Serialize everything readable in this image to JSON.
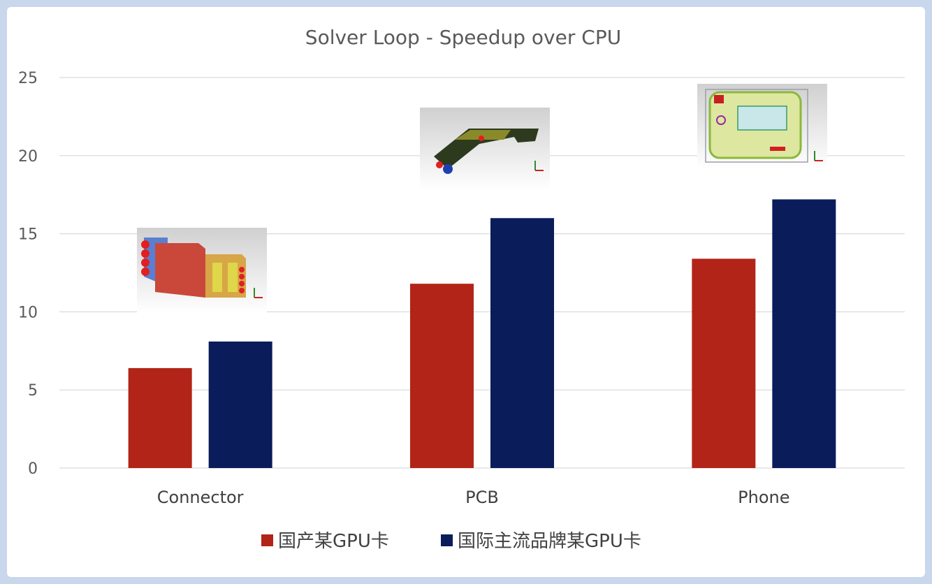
{
  "chart_data": {
    "type": "bar",
    "title": "Solver Loop - Speedup over CPU",
    "xlabel": "",
    "ylabel": "",
    "categories": [
      "Connector",
      "PCB",
      "Phone"
    ],
    "series": [
      {
        "name": "国产某GPU卡",
        "values": [
          6.4,
          11.8,
          13.4
        ],
        "color": "#b22417"
      },
      {
        "name": "国际主流品牌某GPU卡",
        "values": [
          8.1,
          16.0,
          17.2
        ],
        "color": "#0a1c5a"
      }
    ],
    "ylim": [
      0,
      25
    ],
    "yticks": [
      0,
      5,
      10,
      15,
      20,
      25
    ],
    "grid": true,
    "legend_position": "bottom",
    "images": [
      {
        "category": "Connector",
        "depicts": "3D connector model"
      },
      {
        "category": "PCB",
        "depicts": "3D PCB model"
      },
      {
        "category": "Phone",
        "depicts": "3D phone model"
      }
    ]
  }
}
